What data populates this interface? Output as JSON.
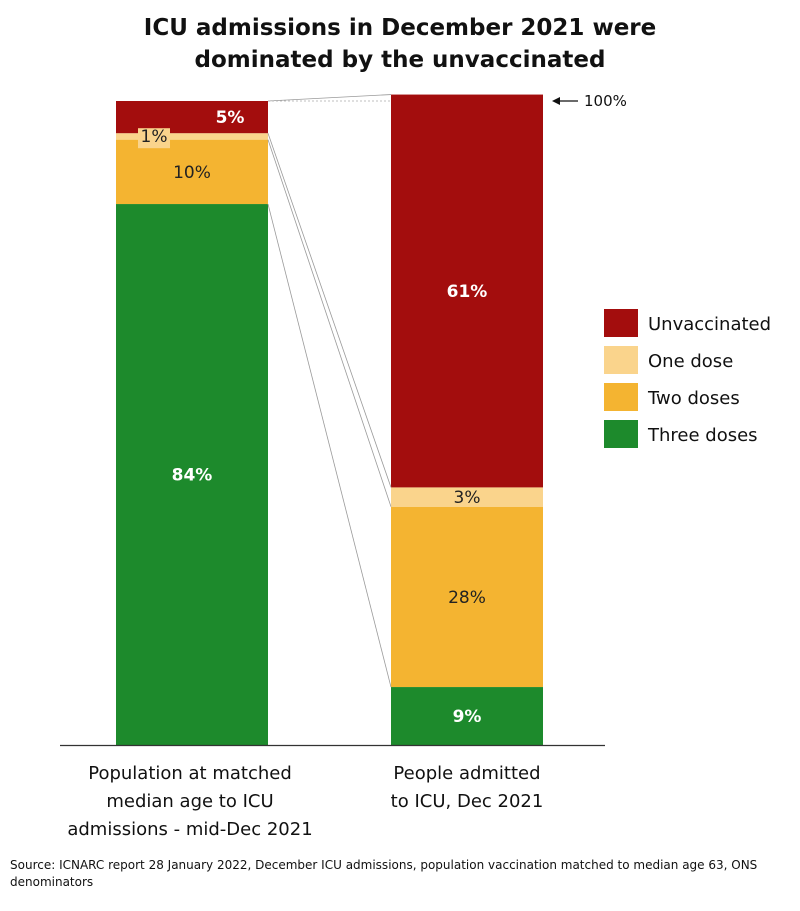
{
  "title_line1": "ICU admissions in December 2021 were",
  "title_line2": "dominated by the unvaccinated",
  "source": "Source: ICNARC report 28 January 2022, December ICU admissions, population vaccination matched to median age 63, ONS denominators",
  "reference_label": "100%",
  "chart_data": {
    "type": "bar",
    "stacked": true,
    "percent": true,
    "ylim": [
      0,
      100
    ],
    "categories": [
      [
        "Population at matched",
        "median age to ICU",
        "admissions - mid-Dec 2021"
      ],
      [
        "People admitted",
        "to ICU, Dec 2021"
      ]
    ],
    "series": [
      {
        "name": "Unvaccinated",
        "values": [
          5,
          61
        ],
        "labels": [
          "5%",
          "61%"
        ]
      },
      {
        "name": "One dose",
        "values": [
          1,
          3
        ],
        "labels": [
          "1%",
          "3%"
        ]
      },
      {
        "name": "Two doses",
        "values": [
          10,
          28
        ],
        "labels": [
          "10%",
          "28%"
        ]
      },
      {
        "name": "Three doses",
        "values": [
          84,
          9
        ],
        "labels": [
          "84%",
          "9%"
        ]
      }
    ],
    "legend_position": "right",
    "grid": false
  },
  "colors": {
    "Unvaccinated": "#a30d0d",
    "One dose": "#fad48c",
    "Two doses": "#f4b431",
    "Three doses": "#1d8a2c",
    "label_dark_bg": "#ffffff",
    "label_light_bg": "#222222"
  }
}
